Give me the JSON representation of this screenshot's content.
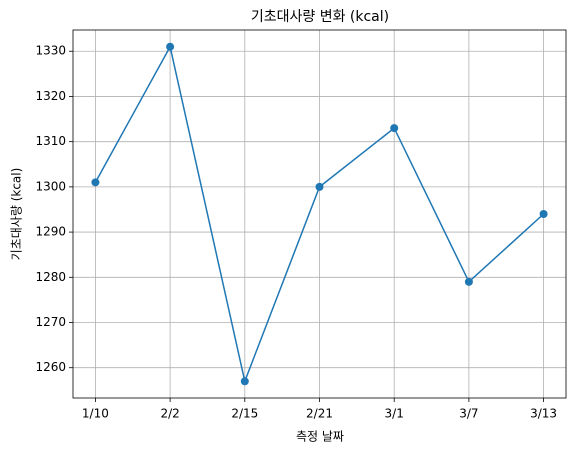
{
  "chart_data": {
    "type": "line",
    "title": "기초대사량 변화 (kcal)",
    "x_label": "측정 날짜",
    "y_label": "기초대사량 (kcal)",
    "categories": [
      "1/10",
      "2/2",
      "2/15",
      "2/21",
      "3/1",
      "3/7",
      "3/13"
    ],
    "series": [
      {
        "name": "기초대사량",
        "color": "#1f77b4",
        "values": [
          1301,
          1331,
          1257,
          1300,
          1313,
          1279,
          1294
        ]
      }
    ],
    "ylim": [
      1253.3,
      1334.7
    ],
    "yticks": [
      1260,
      1270,
      1280,
      1290,
      1300,
      1310,
      1320,
      1330
    ],
    "grid": true
  }
}
